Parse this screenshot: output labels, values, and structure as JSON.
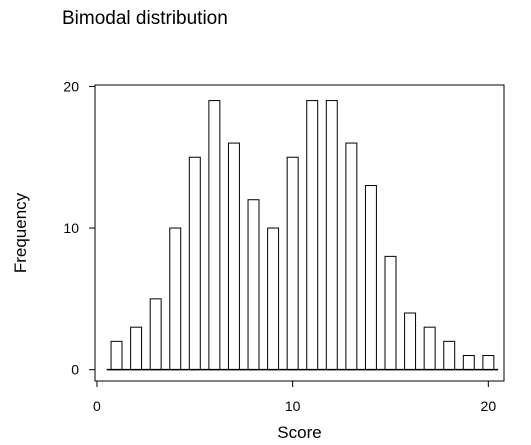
{
  "chart_data": {
    "type": "bar",
    "title": "Bimodal distribution",
    "xlabel": "Score",
    "ylabel": "Frequency",
    "categories": [
      1,
      2,
      3,
      4,
      5,
      6,
      7,
      8,
      9,
      10,
      11,
      12,
      13,
      14,
      15,
      16,
      17,
      18,
      19,
      20
    ],
    "values": [
      2,
      3,
      5,
      10,
      15,
      19,
      16,
      12,
      10,
      15,
      19,
      19,
      16,
      13,
      8,
      4,
      3,
      2,
      1,
      1
    ],
    "xlim": [
      -0.1,
      20.8
    ],
    "ylim": [
      -0.8,
      20.1
    ],
    "xticks": [
      0,
      10,
      20
    ],
    "yticks": [
      0,
      10,
      20
    ],
    "grid": false,
    "bar_fill": "#ffffff",
    "bar_stroke": "#000000"
  }
}
